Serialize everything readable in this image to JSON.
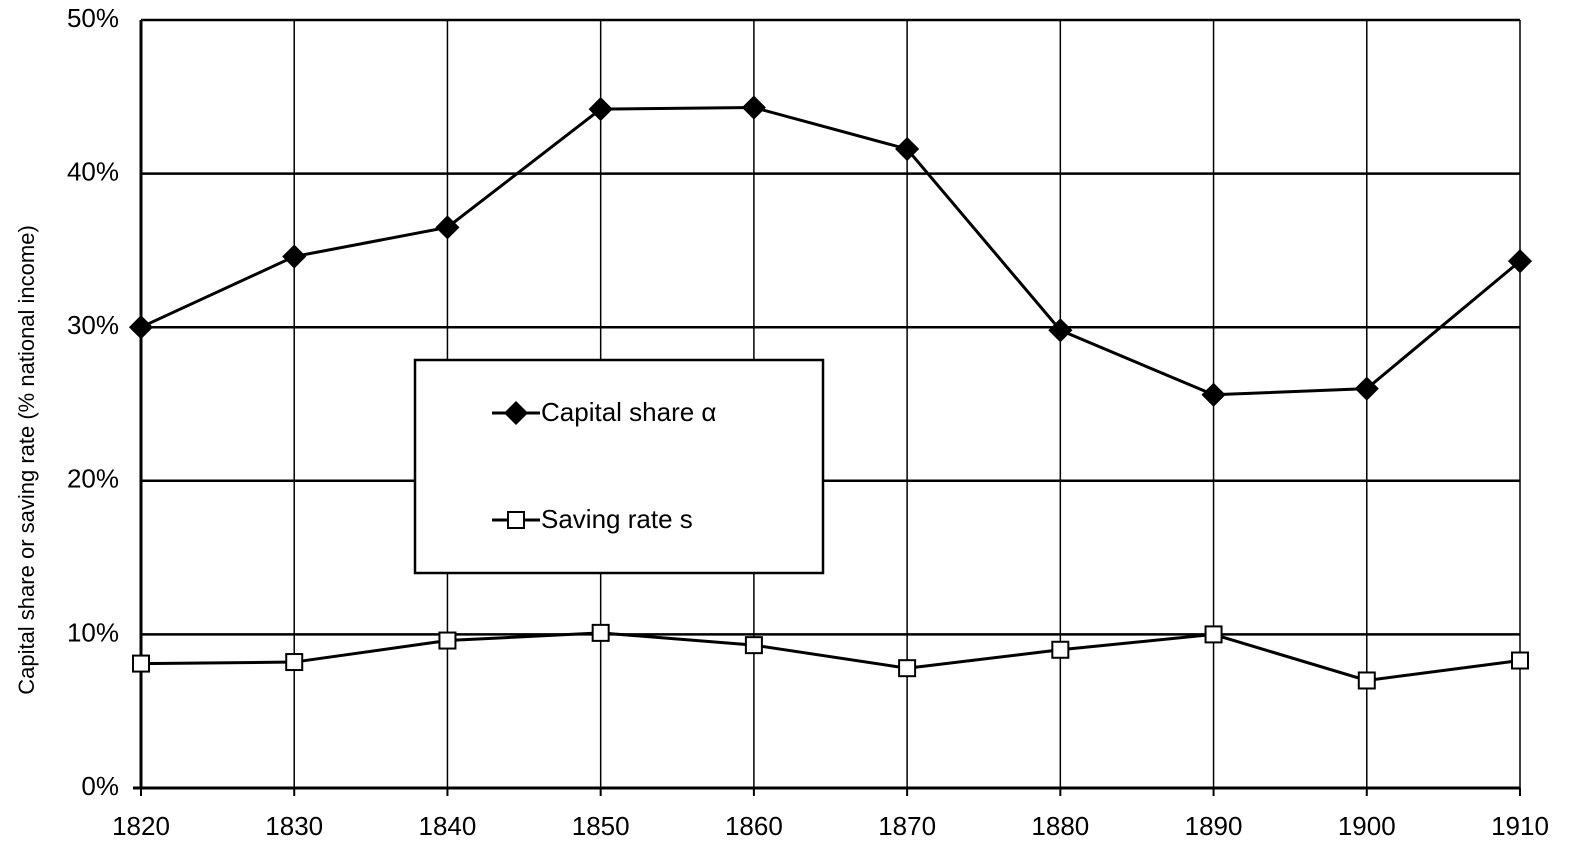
{
  "chart_data": {
    "type": "line",
    "y_label": "Capital share or saving rate (% national income)",
    "x": [
      1820,
      1830,
      1840,
      1850,
      1860,
      1870,
      1880,
      1890,
      1900,
      1910
    ],
    "series": [
      {
        "name": "Capital share α",
        "color": "#000000",
        "marker": "diamond",
        "marker_fill": "#000000",
        "values": [
          30.0,
          34.6,
          36.5,
          44.2,
          44.3,
          41.6,
          29.8,
          25.6,
          26.0,
          34.3
        ]
      },
      {
        "name": "Saving rate s",
        "color": "#000000",
        "marker": "square",
        "marker_fill": "#ffffff",
        "values": [
          8.1,
          8.2,
          9.6,
          10.1,
          9.3,
          7.8,
          9.0,
          10.0,
          7.0,
          8.3
        ]
      }
    ],
    "xlim": [
      1820,
      1910
    ],
    "xticks": [
      1820,
      1830,
      1840,
      1850,
      1860,
      1870,
      1880,
      1890,
      1900,
      1910
    ],
    "ylim": [
      0,
      50
    ],
    "yticks": [
      {
        "value": 0,
        "label": "0%"
      },
      {
        "value": 10,
        "label": "10%"
      },
      {
        "value": 20,
        "label": "20%"
      },
      {
        "value": 30,
        "label": "30%"
      },
      {
        "value": 40,
        "label": "40%"
      },
      {
        "value": 50,
        "label": "50%"
      }
    ],
    "grid": true
  }
}
